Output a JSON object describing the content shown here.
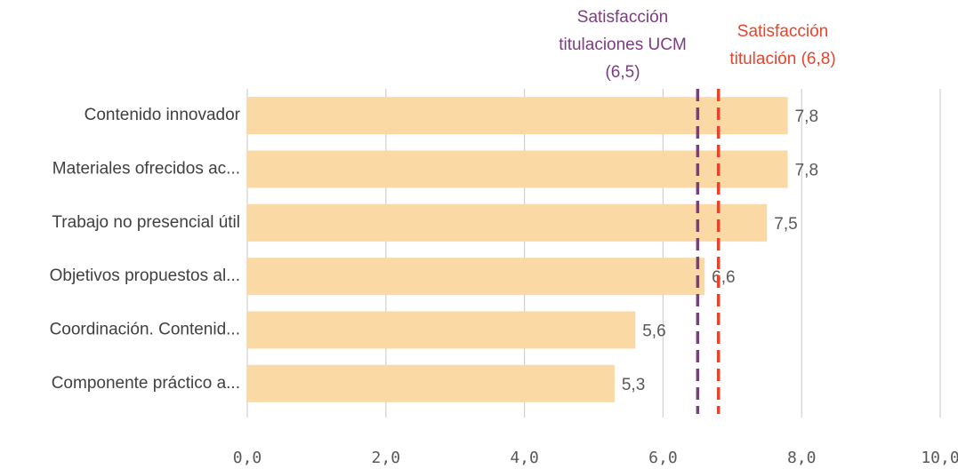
{
  "chart_data": {
    "type": "bar",
    "orientation": "horizontal",
    "categories": [
      "Contenido innovador",
      "Materiales ofrecidos ac...",
      "Trabajo no presencial útil",
      "Objetivos propuestos al...",
      "Coordinación. Contenid...",
      "Componente práctico a..."
    ],
    "values": [
      7.8,
      7.8,
      7.5,
      6.6,
      5.6,
      5.3
    ],
    "value_labels": [
      "7,8",
      "7,8",
      "7,5",
      "6,6",
      "5,6",
      "5,3"
    ],
    "color": "#fad9a5",
    "xlim": [
      0,
      10
    ],
    "xticks": [
      {
        "value": 0,
        "label": "0,0"
      },
      {
        "value": 2,
        "label": "2,0"
      },
      {
        "value": 4,
        "label": "4,0"
      },
      {
        "value": 6,
        "label": "6,0"
      },
      {
        "value": 8,
        "label": "8,0"
      },
      {
        "value": 10,
        "label": "10,0"
      }
    ],
    "grid": true,
    "reference_lines": [
      {
        "value": 6.5,
        "label": [
          "Satisfacción",
          "titulaciones UCM",
          "(6,5)"
        ],
        "color": "#7d3c82"
      },
      {
        "value": 6.8,
        "label": [
          "Satisfacción",
          "titulación (6,8)"
        ],
        "color": "#e8442c"
      }
    ]
  }
}
